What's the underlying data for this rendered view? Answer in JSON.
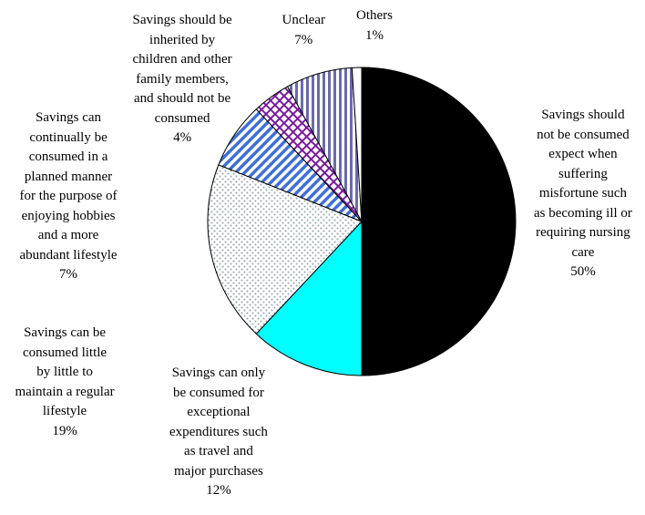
{
  "chart_data": {
    "type": "pie",
    "title": "",
    "start_angle_deg": 0,
    "direction": "clockwise",
    "slices": [
      {
        "label": "Savings should\nnot be consumed\nexpect when\nsuffering\nmisfortune such\nas becoming ill or\nrequiring nursing\ncare",
        "value": 50,
        "value_label": "50%",
        "color": "#000000",
        "pattern": "solid"
      },
      {
        "label": "Savings can only\nbe consumed for\nexceptional\nexpenditures such\nas travel and\nmajor purchases",
        "value": 12,
        "value_label": "12%",
        "color": "#00ffff",
        "pattern": "solid"
      },
      {
        "label": "Savings can be\nconsumed little\nby little to\nmaintain a regular\nlifestyle",
        "value": 19,
        "value_label": "19%",
        "color": "#9aa7b0",
        "pattern": "dots"
      },
      {
        "label": "Savings can\ncontinually be\nconsumed in a\nplanned manner\nfor the purpose of\nenjoying hobbies\nand a more\nabundant lifestyle",
        "value": 7,
        "value_label": "7%",
        "color": "#3f6fd8",
        "pattern": "diagonal"
      },
      {
        "label": "Savings should be\ninherited by\nchildren and other\nfamily members,\nand should not be\nconsumed",
        "value": 4,
        "value_label": "4%",
        "color": "#7a1ba0",
        "pattern": "crosshatch"
      },
      {
        "label": "Unclear",
        "value": 7,
        "value_label": "7%",
        "color": "#6a6ab0",
        "pattern": "vertical"
      },
      {
        "label": "Others",
        "value": 1,
        "value_label": "1%",
        "color": "#ffffff",
        "pattern": "solid"
      }
    ]
  }
}
